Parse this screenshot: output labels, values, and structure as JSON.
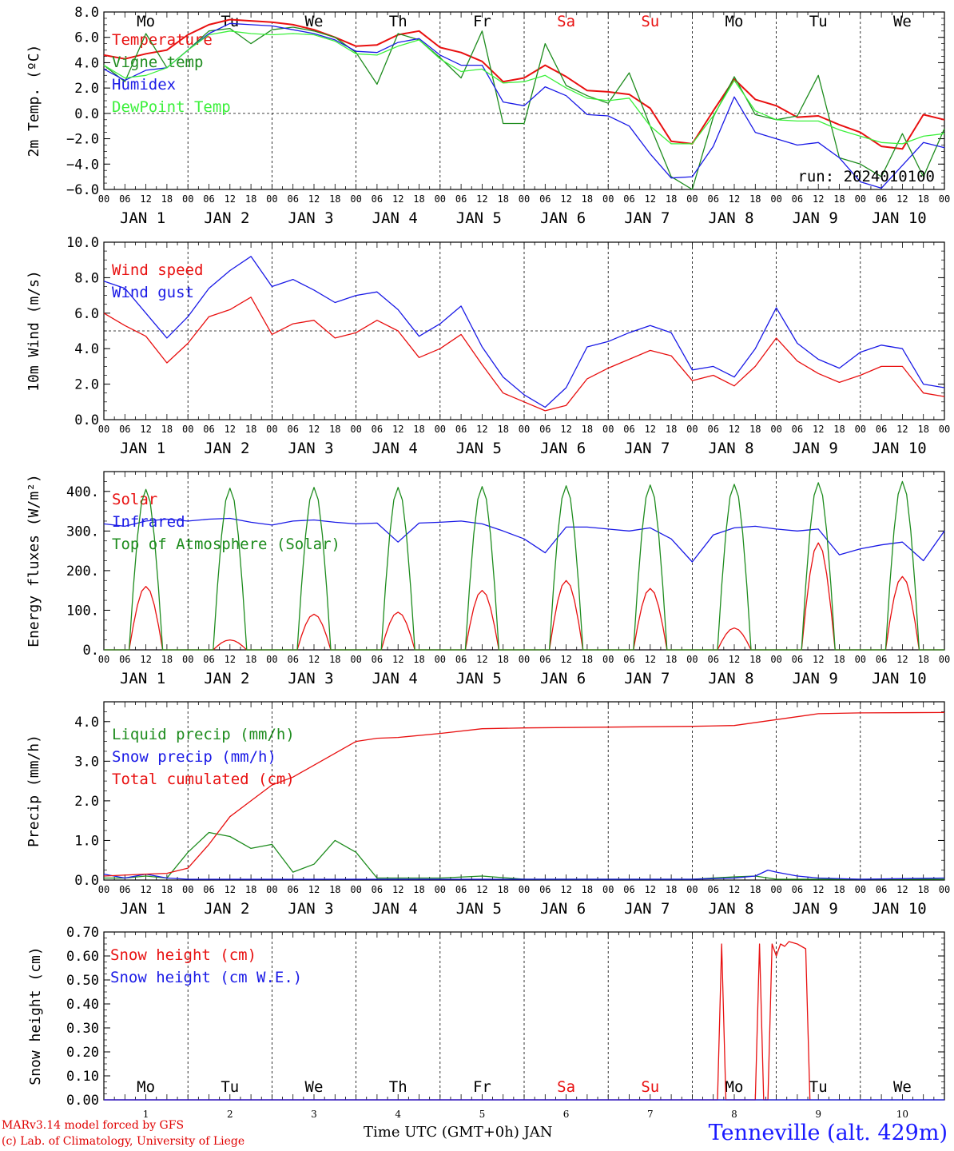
{
  "colors": {
    "red": "#e81010",
    "dkgreen": "#1e8c1e",
    "blue": "#1a1ae6",
    "ltgreen": "#3cf03c",
    "weekend": "#e81010"
  },
  "days_top": [
    "Mo",
    "Tu",
    "We",
    "Th",
    "Fr",
    "Sa",
    "Su",
    "Mo",
    "Tu",
    "We"
  ],
  "weekend_idx": [
    5,
    6
  ],
  "date_labels": [
    "JAN  1",
    "JAN  2",
    "JAN  3",
    "JAN  4",
    "JAN  5",
    "JAN  6",
    "JAN  7",
    "JAN  8",
    "JAN  9",
    "JAN 10"
  ],
  "hour_ticks": [
    "00",
    "06",
    "12",
    "18"
  ],
  "hour_end": "00",
  "footer": {
    "line1": "MARv3.14 model forced by GFS",
    "line2": "(c) Lab. of Climatology, University of Liege",
    "xlabel": "Time UTC (GMT+0h) JAN",
    "station": "Tenneville (alt. 429m)"
  },
  "chart_data": [
    {
      "type": "line",
      "ylabel": "2m Temp. (ºC)",
      "ylim": [
        -6,
        8
      ],
      "yticks": [
        "8.0",
        "6.0",
        "4.0",
        "2.0",
        "0.0",
        "−2.0",
        "−4.0",
        "−6.0"
      ],
      "yticks_values": [
        8,
        6,
        4,
        2,
        0,
        -2,
        -4,
        -6
      ],
      "ref_line": 0,
      "annotation": "run: 2024010100",
      "x_unit": "days since JAN 1 00 UTC",
      "series": [
        {
          "name": "Temperature",
          "color": "red",
          "x": [
            0,
            0.25,
            0.5,
            0.75,
            1,
            1.25,
            1.5,
            1.75,
            2,
            2.25,
            2.5,
            2.75,
            3,
            3.25,
            3.5,
            3.75,
            4,
            4.25,
            4.5,
            4.75,
            5,
            5.25,
            5.5,
            5.75,
            6,
            6.25,
            6.5,
            6.75,
            7,
            7.25,
            7.5,
            7.75,
            8,
            8.25,
            8.5,
            8.75,
            9,
            9.25,
            9.5,
            9.75,
            10
          ],
          "values": [
            4.6,
            4.3,
            4.7,
            5.0,
            6.2,
            7.0,
            7.4,
            7.3,
            7.2,
            7.0,
            6.6,
            6.0,
            5.3,
            5.4,
            6.2,
            6.5,
            5.2,
            4.8,
            4.1,
            2.5,
            2.8,
            3.8,
            2.9,
            1.8,
            1.7,
            1.5,
            0.4,
            -2.2,
            -2.4,
            0.2,
            2.7,
            1.1,
            0.6,
            -0.3,
            -0.2,
            -0.9,
            -1.5,
            -2.6,
            -2.8,
            -0.1,
            -0.5
          ]
        },
        {
          "name": "Vigne temp",
          "color": "dkgreen",
          "x": [
            0,
            0.25,
            0.5,
            0.75,
            1,
            1.25,
            1.5,
            1.75,
            2,
            2.25,
            2.5,
            2.75,
            3,
            3.25,
            3.5,
            3.75,
            4,
            4.25,
            4.5,
            4.75,
            5,
            5.25,
            5.5,
            5.75,
            6,
            6.25,
            6.5,
            6.75,
            7,
            7.25,
            7.5,
            7.75,
            8,
            8.25,
            8.5,
            8.75,
            9,
            9.25,
            9.5,
            9.75,
            10
          ],
          "values": [
            3.8,
            2.5,
            6.3,
            3.6,
            5.0,
            6.5,
            6.7,
            5.5,
            6.6,
            6.8,
            6.5,
            6.0,
            4.8,
            2.3,
            6.3,
            5.8,
            4.4,
            2.8,
            6.5,
            -0.8,
            -0.8,
            5.5,
            2.2,
            1.4,
            0.8,
            3.2,
            -1.0,
            -5.0,
            -6.0,
            -0.3,
            2.9,
            -0.1,
            -0.5,
            -0.2,
            3.0,
            -3.5,
            -4.0,
            -5.0,
            -1.6,
            -5.0,
            -1.2
          ]
        },
        {
          "name": "Humidex",
          "color": "blue",
          "x": [
            0,
            0.25,
            0.5,
            0.75,
            1,
            1.25,
            1.5,
            1.75,
            2,
            2.25,
            2.5,
            2.75,
            3,
            3.25,
            3.5,
            3.75,
            4,
            4.25,
            4.5,
            4.75,
            5,
            5.25,
            5.5,
            5.75,
            6,
            6.25,
            6.5,
            6.75,
            7,
            7.25,
            7.5,
            7.75,
            8,
            8.25,
            8.5,
            8.75,
            9,
            9.25,
            9.5,
            9.75,
            10
          ],
          "values": [
            3.5,
            2.6,
            3.4,
            3.6,
            5.0,
            6.3,
            7.1,
            7.0,
            6.9,
            6.6,
            6.3,
            5.8,
            4.9,
            4.8,
            5.6,
            5.9,
            4.6,
            3.8,
            3.8,
            0.9,
            0.6,
            2.1,
            1.4,
            -0.1,
            -0.2,
            -1.0,
            -3.2,
            -5.1,
            -5.0,
            -2.6,
            1.3,
            -1.5,
            -2.0,
            -2.5,
            -2.3,
            -3.5,
            -5.4,
            -5.9,
            -4.1,
            -2.3,
            -2.7
          ]
        },
        {
          "name": "DewPoint Temp",
          "color": "ltgreen",
          "x": [
            0,
            0.25,
            0.5,
            0.75,
            1,
            1.25,
            1.5,
            1.75,
            2,
            2.25,
            2.5,
            2.75,
            3,
            3.25,
            3.5,
            3.75,
            4,
            4.25,
            4.5,
            4.75,
            5,
            5.25,
            5.5,
            5.75,
            6,
            6.25,
            6.5,
            6.75,
            7,
            7.25,
            7.5,
            7.75,
            8,
            8.25,
            8.5,
            8.75,
            9,
            9.25,
            9.5,
            9.75,
            10
          ],
          "values": [
            3.8,
            2.8,
            3.0,
            3.6,
            5.0,
            6.2,
            6.5,
            6.3,
            6.2,
            6.3,
            6.2,
            5.7,
            4.7,
            4.6,
            5.3,
            5.8,
            4.3,
            3.3,
            3.5,
            2.4,
            2.5,
            3.0,
            2.0,
            1.2,
            1.0,
            1.2,
            -1.0,
            -2.4,
            -2.4,
            -0.2,
            2.6,
            0.2,
            -0.5,
            -0.6,
            -0.6,
            -1.3,
            -1.8,
            -2.3,
            -2.4,
            -1.8,
            -1.6
          ]
        }
      ]
    },
    {
      "type": "line",
      "ylabel": "10m Wind (m/s)",
      "ylim": [
        0,
        10
      ],
      "yticks": [
        "10.0",
        "8.0",
        "6.0",
        "4.0",
        "2.0",
        "0.0"
      ],
      "yticks_values": [
        10,
        8,
        6,
        4,
        2,
        0
      ],
      "ref_line": 5,
      "series": [
        {
          "name": "Wind speed",
          "color": "red",
          "x": [
            0,
            0.25,
            0.5,
            0.75,
            1,
            1.25,
            1.5,
            1.75,
            2,
            2.25,
            2.5,
            2.75,
            3,
            3.25,
            3.5,
            3.75,
            4,
            4.25,
            4.5,
            4.75,
            5,
            5.25,
            5.5,
            5.75,
            6,
            6.25,
            6.5,
            6.75,
            7,
            7.25,
            7.5,
            7.75,
            8,
            8.25,
            8.5,
            8.75,
            9,
            9.25,
            9.5,
            9.75,
            10
          ],
          "values": [
            6.0,
            5.3,
            4.7,
            3.2,
            4.3,
            5.8,
            6.2,
            6.9,
            4.8,
            5.4,
            5.6,
            4.6,
            4.9,
            5.6,
            5.0,
            3.5,
            4.0,
            4.8,
            3.1,
            1.5,
            1.0,
            0.5,
            0.8,
            2.3,
            2.9,
            3.4,
            3.9,
            3.6,
            2.2,
            2.5,
            1.9,
            3.0,
            4.6,
            3.3,
            2.6,
            2.1,
            2.5,
            3.0,
            3.0,
            1.5,
            1.3
          ]
        },
        {
          "name": "Wind gust",
          "color": "blue",
          "x": [
            0,
            0.25,
            0.5,
            0.75,
            1,
            1.25,
            1.5,
            1.75,
            2,
            2.25,
            2.5,
            2.75,
            3,
            3.25,
            3.5,
            3.75,
            4,
            4.25,
            4.5,
            4.75,
            5,
            5.25,
            5.5,
            5.75,
            6,
            6.25,
            6.5,
            6.75,
            7,
            7.25,
            7.5,
            7.75,
            8,
            8.25,
            8.5,
            8.75,
            9,
            9.25,
            9.5,
            9.75,
            10
          ],
          "values": [
            7.8,
            7.4,
            6.0,
            4.6,
            5.8,
            7.4,
            8.4,
            9.2,
            7.5,
            7.9,
            7.3,
            6.6,
            7.0,
            7.2,
            6.2,
            4.7,
            5.4,
            6.4,
            4.1,
            2.4,
            1.4,
            0.7,
            1.8,
            4.1,
            4.4,
            4.9,
            5.3,
            4.9,
            2.8,
            3.0,
            2.4,
            4.0,
            6.3,
            4.3,
            3.4,
            2.9,
            3.8,
            4.2,
            4.0,
            2.0,
            1.8
          ]
        }
      ]
    },
    {
      "type": "line",
      "ylabel": "Energy fluxes (W/m²)",
      "ylim": [
        0,
        450
      ],
      "yticks": [
        "400.",
        "300.",
        "200.",
        "100.",
        "0."
      ],
      "yticks_values": [
        400,
        300,
        200,
        100,
        0
      ],
      "series": [
        {
          "name": "Solar",
          "color": "red",
          "peaks": [
            160,
            25,
            90,
            95,
            150,
            175,
            155,
            55,
            270,
            185
          ]
        },
        {
          "name": "Infrared",
          "color": "blue",
          "x": [
            0,
            0.25,
            0.5,
            0.75,
            1,
            1.25,
            1.5,
            1.75,
            2,
            2.25,
            2.5,
            2.75,
            3,
            3.25,
            3.5,
            3.75,
            4,
            4.25,
            4.5,
            4.75,
            5,
            5.25,
            5.5,
            5.75,
            6,
            6.25,
            6.5,
            6.75,
            7,
            7.25,
            7.5,
            7.75,
            8,
            8.25,
            8.5,
            8.75,
            9,
            9.25,
            9.5,
            9.75,
            10
          ],
          "values": [
            318,
            312,
            325,
            330,
            325,
            330,
            332,
            322,
            315,
            325,
            328,
            322,
            318,
            320,
            272,
            320,
            322,
            325,
            318,
            300,
            280,
            245,
            310,
            310,
            305,
            300,
            308,
            280,
            222,
            290,
            308,
            312,
            305,
            300,
            305,
            240,
            255,
            265,
            272,
            225,
            300
          ]
        },
        {
          "name": "Top of Atmosphere (Solar)",
          "color": "dkgreen",
          "peaks": [
            405,
            408,
            410,
            410,
            412,
            414,
            416,
            418,
            422,
            425
          ]
        }
      ]
    },
    {
      "type": "line",
      "ylabel": "Precip (mm/h)",
      "ylim": [
        0,
        4.5
      ],
      "yticks": [
        "4.0",
        "3.0",
        "2.0",
        "1.0",
        "0.0"
      ],
      "yticks_values": [
        4,
        3,
        2,
        1,
        0
      ],
      "series": [
        {
          "name": "Liquid precip (mm/h)",
          "color": "dkgreen",
          "x": [
            0,
            0.25,
            0.5,
            0.75,
            1,
            1.25,
            1.5,
            1.75,
            2,
            2.25,
            2.5,
            2.75,
            3,
            3.25,
            3.5,
            3.75,
            4,
            4.5,
            5,
            5.5,
            6,
            6.5,
            7,
            7.5,
            7.75,
            8,
            8.5,
            9,
            9.5,
            10
          ],
          "values": [
            0.05,
            0.05,
            0.1,
            0.05,
            0.7,
            1.2,
            1.1,
            0.8,
            0.9,
            0.2,
            0.4,
            1.0,
            0.7,
            0.05,
            0.05,
            0.05,
            0.05,
            0.1,
            0.02,
            0.02,
            0.02,
            0.02,
            0.02,
            0.08,
            0.1,
            0.02,
            0.02,
            0.02,
            0.02,
            0.02
          ]
        },
        {
          "name": "Snow precip (mm/h)",
          "color": "blue",
          "x": [
            0,
            0.25,
            0.5,
            0.75,
            1,
            2,
            3,
            4,
            5,
            6,
            7,
            7.5,
            7.75,
            7.9,
            8,
            8.25,
            8.5,
            9,
            10
          ],
          "values": [
            0.15,
            0.05,
            0.15,
            0.05,
            0.02,
            0.02,
            0.02,
            0.02,
            0.02,
            0.02,
            0.02,
            0.05,
            0.1,
            0.25,
            0.2,
            0.1,
            0.05,
            0.02,
            0.05
          ]
        },
        {
          "name": "Total cumulated (cm)",
          "color": "red",
          "x": [
            0,
            0.5,
            0.75,
            1,
            1.25,
            1.5,
            1.75,
            2,
            2.25,
            2.5,
            2.75,
            3,
            3.25,
            3.5,
            4,
            4.5,
            5,
            6,
            7,
            7.5,
            8,
            8.5,
            9,
            10
          ],
          "values": [
            0.1,
            0.15,
            0.17,
            0.3,
            0.9,
            1.6,
            2.0,
            2.4,
            2.6,
            2.9,
            3.2,
            3.5,
            3.58,
            3.6,
            3.7,
            3.82,
            3.84,
            3.86,
            3.88,
            3.9,
            4.05,
            4.2,
            4.22,
            4.23
          ]
        }
      ]
    },
    {
      "type": "line",
      "ylabel": "Snow height (cm)",
      "ylim": [
        0,
        0.7
      ],
      "yticks": [
        "0.70",
        "0.60",
        "0.50",
        "0.40",
        "0.30",
        "0.20",
        "0.10",
        "0.00"
      ],
      "yticks_values": [
        0.7,
        0.6,
        0.5,
        0.4,
        0.3,
        0.2,
        0.1,
        0
      ],
      "series": [
        {
          "name": "Snow height (cm)",
          "color": "red",
          "x": [
            0,
            7.3,
            7.35,
            7.4,
            7.75,
            7.8,
            7.85,
            7.9,
            7.95,
            8.0,
            8.05,
            8.1,
            8.15,
            8.25,
            8.35,
            8.4
          ],
          "values": [
            0,
            0,
            0.65,
            0,
            0,
            0.65,
            0,
            0,
            0.65,
            0.6,
            0.65,
            0.64,
            0.66,
            0.65,
            0.63,
            0
          ]
        },
        {
          "name": "Snow height (cm W.E.)",
          "color": "blue",
          "x": [
            0,
            10
          ],
          "values": [
            0,
            0
          ]
        }
      ]
    }
  ]
}
